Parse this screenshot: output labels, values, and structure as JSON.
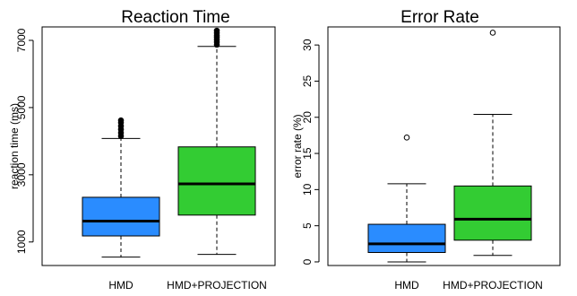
{
  "chart_data": [
    {
      "type": "boxplot",
      "title": "Reaction Time",
      "xlabel": "",
      "ylabel": "reaction time (ms)",
      "ylim": [
        300,
        7400
      ],
      "yticks": [
        "1000",
        "3000",
        "5000",
        "7000"
      ],
      "categories": [
        "HMD",
        "HMD+PROJECTION"
      ],
      "colors": [
        "#2a8cff",
        "#33cc33"
      ],
      "boxes": [
        {
          "whisker_low": 550,
          "q1": 1180,
          "median": 1620,
          "q3": 2330,
          "whisker_high": 4080,
          "outliers": [
            4150,
            4250,
            4350,
            4450,
            4550,
            4620
          ]
        },
        {
          "whisker_low": 630,
          "q1": 1800,
          "median": 2730,
          "q3": 3830,
          "whisker_high": 6820,
          "outliers": [
            6870,
            6950,
            7020,
            7090,
            7150,
            7220,
            7290
          ]
        }
      ]
    },
    {
      "type": "boxplot",
      "title": "Error Rate",
      "xlabel": "",
      "ylabel": "error rate (%)",
      "ylim": [
        -0.5,
        32.5
      ],
      "yticks": [
        "0",
        "5",
        "10",
        "15",
        "20",
        "25",
        "30"
      ],
      "categories": [
        "HMD",
        "HMD+PROJECTION"
      ],
      "colors": [
        "#2a8cff",
        "#33cc33"
      ],
      "boxes": [
        {
          "whisker_low": 0,
          "q1": 1.3,
          "median": 2.5,
          "q3": 5.2,
          "whisker_high": 10.8,
          "outliers": [
            17.2
          ]
        },
        {
          "whisker_low": 0.9,
          "q1": 3.0,
          "median": 5.9,
          "q3": 10.5,
          "whisker_high": 20.4,
          "outliers": [
            31.7
          ]
        }
      ]
    }
  ]
}
